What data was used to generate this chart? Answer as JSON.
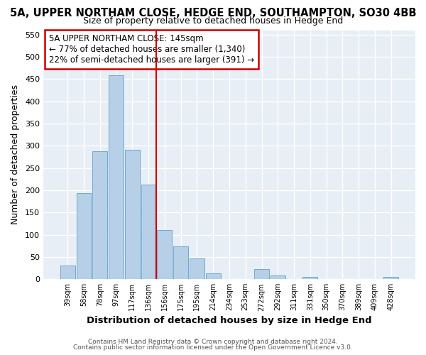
{
  "title": "5A, UPPER NORTHAM CLOSE, HEDGE END, SOUTHAMPTON, SO30 4BB",
  "subtitle": "Size of property relative to detached houses in Hedge End",
  "xlabel": "Distribution of detached houses by size in Hedge End",
  "ylabel": "Number of detached properties",
  "bin_labels": [
    "39sqm",
    "58sqm",
    "78sqm",
    "97sqm",
    "117sqm",
    "136sqm",
    "156sqm",
    "175sqm",
    "195sqm",
    "214sqm",
    "234sqm",
    "253sqm",
    "272sqm",
    "292sqm",
    "311sqm",
    "331sqm",
    "350sqm",
    "370sqm",
    "389sqm",
    "409sqm",
    "428sqm"
  ],
  "bar_heights": [
    30,
    193,
    287,
    458,
    291,
    213,
    110,
    73,
    46,
    13,
    0,
    0,
    22,
    8,
    0,
    5,
    0,
    0,
    0,
    0,
    5
  ],
  "bar_color": "#b8cfe8",
  "bar_edge_color": "#6aaad4",
  "vline_x": 5.5,
  "vline_color": "#cc0000",
  "annotation_text": "5A UPPER NORTHAM CLOSE: 145sqm\n← 77% of detached houses are smaller (1,340)\n22% of semi-detached houses are larger (391) →",
  "annotation_box_color": "#cc0000",
  "ylim": [
    0,
    560
  ],
  "yticks": [
    0,
    50,
    100,
    150,
    200,
    250,
    300,
    350,
    400,
    450,
    500,
    550
  ],
  "footer1": "Contains HM Land Registry data © Crown copyright and database right 2024.",
  "footer2": "Contains public sector information licensed under the Open Government Licence v3.0.",
  "background_color": "#ffffff",
  "plot_bg_color": "#e8eef5",
  "grid_color": "#ffffff",
  "title_fontsize": 10.5,
  "subtitle_fontsize": 9.0,
  "xlabel_fontsize": 9.5,
  "ylabel_fontsize": 9.0
}
